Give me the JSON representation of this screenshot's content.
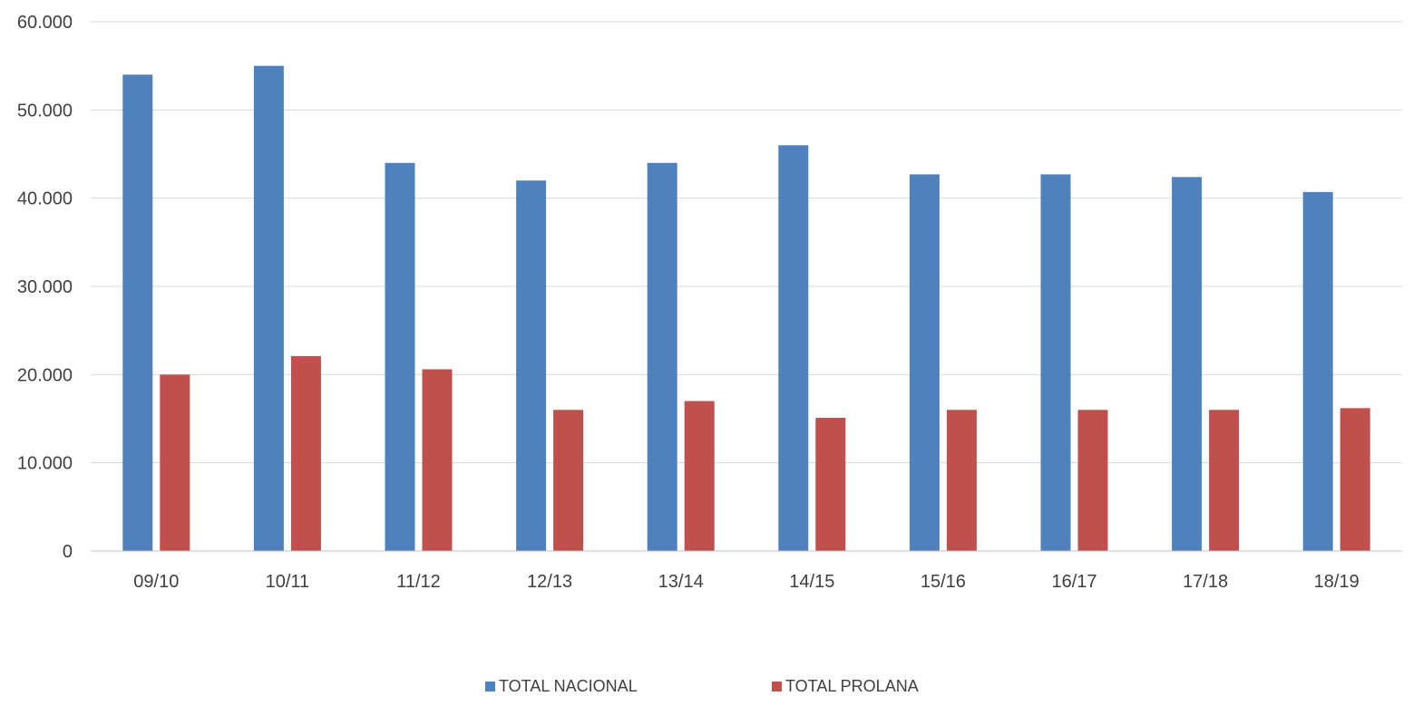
{
  "chart_data": {
    "type": "bar",
    "categories": [
      "09/10",
      "10/11",
      "11/12",
      "12/13",
      "13/14",
      "14/15",
      "15/16",
      "16/17",
      "17/18",
      "18/19"
    ],
    "series": [
      {
        "name": "TOTAL NACIONAL",
        "color": "#4f81bd",
        "values": [
          54000,
          55000,
          44000,
          42000,
          44000,
          46000,
          42700,
          42700,
          42400,
          40700
        ]
      },
      {
        "name": "TOTAL PROLANA",
        "color": "#c0504d",
        "values": [
          20000,
          22100,
          20600,
          16000,
          17000,
          15100,
          16000,
          16000,
          16000,
          16200
        ]
      }
    ],
    "ylim": [
      0,
      60000
    ],
    "yticks": [
      0,
      10000,
      20000,
      30000,
      40000,
      50000,
      60000
    ],
    "ytick_labels": [
      "0",
      "10.000",
      "20.000",
      "30.000",
      "40.000",
      "50.000",
      "60.000"
    ],
    "grid": true,
    "legend": "bottom-center"
  }
}
